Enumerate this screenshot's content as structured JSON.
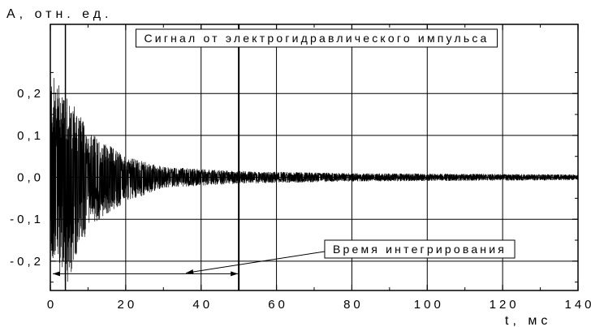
{
  "chart_data": {
    "type": "line",
    "title": "",
    "ylabel": "A, отн. ед.",
    "xlabel": "t, мс",
    "xlim": [
      0,
      140
    ],
    "ylim": [
      -0.27,
      0.365
    ],
    "grid": true,
    "x_ticks": [
      0,
      20,
      40,
      60,
      80,
      100,
      120,
      140
    ],
    "x_tick_labels": [
      "0",
      "20",
      "40",
      "60",
      "80",
      "100",
      "120",
      "140"
    ],
    "y_ticks": [
      0.2,
      0.1,
      0.0,
      -0.1,
      -0.2
    ],
    "y_tick_labels": [
      "0,2",
      "0,1",
      "0,0",
      "-0,1",
      "-0,2"
    ],
    "series": [
      {
        "name": "",
        "color": "#000000",
        "description_points": [
          {
            "t": 1,
            "max": 0.24,
            "min": -0.2
          },
          {
            "t": 4.5,
            "max": 0.21,
            "min": -0.26
          },
          {
            "t": 10,
            "max": 0.11,
            "min": -0.12
          },
          {
            "t": 20,
            "max": 0.05,
            "min": -0.06
          },
          {
            "t": 30,
            "max": 0.025,
            "min": -0.025
          },
          {
            "t": 50,
            "max": 0.015,
            "min": -0.015
          },
          {
            "t": 80,
            "max": 0.01,
            "min": -0.01
          },
          {
            "t": 140,
            "max": 0.007,
            "min": -0.007
          }
        ]
      }
    ],
    "vertical_markers": [
      4,
      50
    ],
    "annotations": [
      {
        "text": "Сигнал от электрогидравлического импульса",
        "boxed": true
      },
      {
        "text": "Время интегрирования",
        "boxed": true,
        "arrow_x_range": [
          0,
          50
        ],
        "arrow_y": -0.23
      }
    ]
  }
}
